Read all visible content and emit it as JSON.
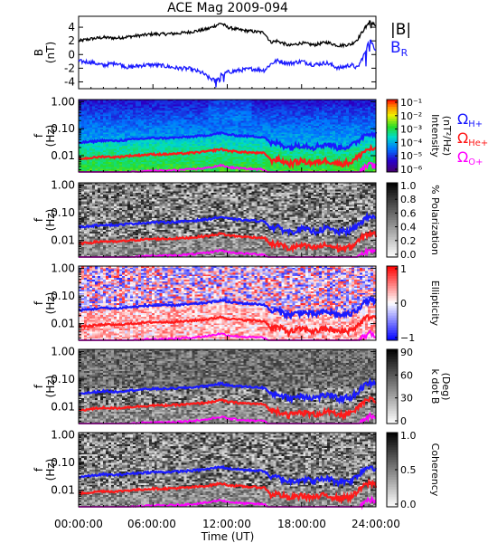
{
  "title": "ACE Mag 2009-094",
  "colors": {
    "B": "#000000",
    "BR": "#1a1aff",
    "H": "#1a1aff",
    "He": "#ff1a1a",
    "O": "#ff00ff",
    "frame": "#000000"
  },
  "chart_data": [
    {
      "type": "line",
      "ylabel": "B",
      "yunit": "(nT)",
      "ylim": [
        -5,
        5.6
      ],
      "yticks": [
        "4",
        "2",
        "0",
        "-2",
        "-4"
      ],
      "ytick_values": [
        4,
        2,
        0,
        -2,
        -4
      ],
      "series": [
        {
          "name": "|B|",
          "color": "#000000",
          "x": [
            0,
            1,
            2,
            3,
            4,
            5,
            6,
            7,
            8,
            9,
            10,
            10.5,
            11,
            11.5,
            12,
            13,
            14,
            15,
            15.5,
            16,
            17,
            18,
            19,
            20,
            21,
            22,
            22.5,
            23,
            23.5,
            24
          ],
          "y": [
            2.0,
            2.3,
            2.5,
            2.4,
            2.6,
            2.8,
            3.0,
            3.0,
            3.1,
            3.3,
            3.6,
            3.8,
            4.2,
            4.6,
            4.0,
            3.6,
            3.4,
            3.2,
            1.8,
            2.0,
            1.3,
            1.7,
            1.4,
            1.8,
            1.3,
            1.5,
            2.2,
            3.6,
            4.8,
            4.2
          ]
        },
        {
          "name": "B_R",
          "color": "#1a1aff",
          "x": [
            0,
            1,
            2,
            3,
            4,
            5,
            6,
            7,
            8,
            9,
            10,
            10.5,
            11,
            11.5,
            12,
            13,
            14,
            15,
            15.5,
            16,
            17,
            18,
            19,
            20,
            21,
            22,
            22.5,
            23,
            23.5,
            24
          ],
          "y": [
            -1.0,
            -1.1,
            -1.6,
            -1.2,
            -1.9,
            -1.6,
            -1.5,
            -1.7,
            -2.0,
            -2.1,
            -2.7,
            -3.4,
            -3.8,
            -3.0,
            -2.6,
            -2.3,
            -2.1,
            -2.3,
            -1.4,
            -0.9,
            -1.3,
            -1.0,
            -1.5,
            -1.2,
            -2.0,
            -1.5,
            -2.0,
            -0.2,
            2.3,
            0.6
          ]
        }
      ],
      "legend": [
        {
          "label": "|B|",
          "color": "#000000"
        },
        {
          "label": "B",
          "sub": "R",
          "color": "#1a1aff"
        }
      ]
    },
    {
      "type": "heatmap",
      "ylabel": "f",
      "yunit": "(Hz)",
      "colorbar_label": "Intensity",
      "colorbar_unit": "(nT²/Hz)",
      "colorbar_ticks": [
        "10⁻¹",
        "10⁻²",
        "10⁻³",
        "10⁻⁴",
        "10⁻⁵",
        "10⁻⁶"
      ],
      "palette": "rainbow",
      "legend": [
        {
          "label": "Ω",
          "sub": "H+",
          "color": "#1a1aff"
        },
        {
          "label": "Ω",
          "sub": "He+",
          "color": "#ff1a1a"
        },
        {
          "label": "Ω",
          "sub": "O+",
          "color": "#ff00ff"
        }
      ]
    },
    {
      "type": "heatmap",
      "ylabel": "f",
      "yunit": "(Hz)",
      "colorbar_label": "% Polarization",
      "colorbar_ticks": [
        "1.0",
        "0.8",
        "0.6",
        "0.4",
        "0.2",
        "0.0"
      ],
      "palette": "gray"
    },
    {
      "type": "heatmap",
      "ylabel": "f",
      "yunit": "(Hz)",
      "colorbar_label": "Ellipticity",
      "colorbar_ticks": [
        "1",
        "0",
        "−1"
      ],
      "palette": "bwr"
    },
    {
      "type": "heatmap",
      "ylabel": "f",
      "yunit": "(Hz)",
      "colorbar_label": "k dot B",
      "colorbar_unit": "(Deg)",
      "colorbar_ticks": [
        "90",
        "60",
        "30",
        "0"
      ],
      "palette": "gray"
    },
    {
      "type": "heatmap",
      "ylabel": "f",
      "yunit": "(Hz)",
      "colorbar_label": "Coherency",
      "colorbar_ticks": [
        "1.0",
        "0.5",
        "0.0"
      ],
      "palette": "gray"
    }
  ],
  "freq_axis": {
    "scale": "log",
    "ylim": [
      0.0025,
      1.2
    ],
    "ticks": [
      "1.00",
      "0.10",
      "0.01"
    ],
    "tick_values": [
      1.0,
      0.1,
      0.01
    ]
  },
  "gyro_lines": {
    "x": [
      0,
      1,
      2,
      3,
      4,
      5,
      6,
      7,
      8,
      9,
      10,
      10.5,
      11,
      11.5,
      12,
      13,
      14,
      15,
      15.5,
      16,
      17,
      18,
      19,
      20,
      21,
      22,
      22.5,
      23,
      23.5,
      24
    ],
    "H": [
      0.03,
      0.033,
      0.037,
      0.035,
      0.039,
      0.042,
      0.045,
      0.045,
      0.047,
      0.05,
      0.055,
      0.058,
      0.064,
      0.07,
      0.061,
      0.055,
      0.052,
      0.049,
      0.027,
      0.03,
      0.02,
      0.026,
      0.021,
      0.027,
      0.02,
      0.023,
      0.033,
      0.055,
      0.073,
      0.064
    ],
    "He": [
      0.0076,
      0.0083,
      0.0093,
      0.0088,
      0.0098,
      0.0105,
      0.0113,
      0.0113,
      0.0118,
      0.0125,
      0.0138,
      0.0145,
      0.016,
      0.0175,
      0.0153,
      0.0138,
      0.013,
      0.0123,
      0.0068,
      0.0075,
      0.005,
      0.0065,
      0.0053,
      0.0068,
      0.005,
      0.0058,
      0.0083,
      0.0138,
      0.0183,
      0.016
    ],
    "O": [
      0.0019,
      0.0021,
      0.0023,
      0.0022,
      0.0024,
      0.0026,
      0.0028,
      0.0028,
      0.0029,
      0.0031,
      0.0034,
      0.0036,
      0.004,
      0.0044,
      0.0038,
      0.0034,
      0.0032,
      0.0031,
      0.0017,
      0.0019,
      0.0013,
      0.0016,
      0.0013,
      0.0017,
      0.0013,
      0.0014,
      0.0021,
      0.0034,
      0.0046,
      0.004
    ]
  },
  "x_axis": {
    "label": "Time (UT)",
    "xlim": [
      0,
      24
    ],
    "ticks": [
      "00:00:00",
      "06:00:00",
      "12:00:00",
      "18:00:00",
      "24:00:00"
    ],
    "tick_values": [
      0,
      6,
      12,
      18,
      24
    ]
  }
}
